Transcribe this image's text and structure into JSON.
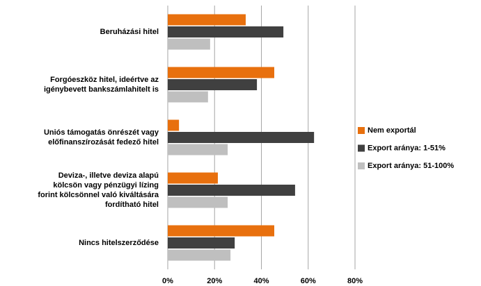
{
  "chart_data": {
    "type": "hbar",
    "categories": [
      [
        "Beruházási hitel"
      ],
      [
        "Forgóeszköz hitel, ideértve az",
        "igénybevett bankszámlahitelt is"
      ],
      [
        "Uniós támogatás önrészét vagy",
        "előfinanszírozását fedező hitel"
      ],
      [
        "Deviza-, illetve deviza alapú",
        "kölcsön vagy pénzügyi lízing",
        "forint kölcsönnel való kiváltására",
        "fordítható hitel"
      ],
      [
        "Nincs hitelszerződése"
      ]
    ],
    "series": [
      {
        "name": "Nem exportál",
        "color": "#e8700e",
        "values": [
          33.3,
          45.5,
          4.8,
          21.4,
          45.5
        ]
      },
      {
        "name": "Export aránya:  1-51%",
        "color": "#404040",
        "values": [
          49.4,
          38.1,
          62.5,
          54.4,
          28.6
        ]
      },
      {
        "name": "Export aránya:  51-100%",
        "color": "#bfbfbf",
        "values": [
          18.1,
          17.2,
          25.6,
          25.6,
          26.8
        ]
      }
    ],
    "xlim": [
      0,
      80
    ],
    "xticks": [
      {
        "value": 0,
        "label": "0%"
      },
      {
        "value": 20,
        "label": "20%"
      },
      {
        "value": 40,
        "label": "40%"
      },
      {
        "value": 60,
        "label": "60%"
      },
      {
        "value": 80,
        "label": "80%"
      }
    ],
    "grid": true,
    "legend": "right"
  }
}
